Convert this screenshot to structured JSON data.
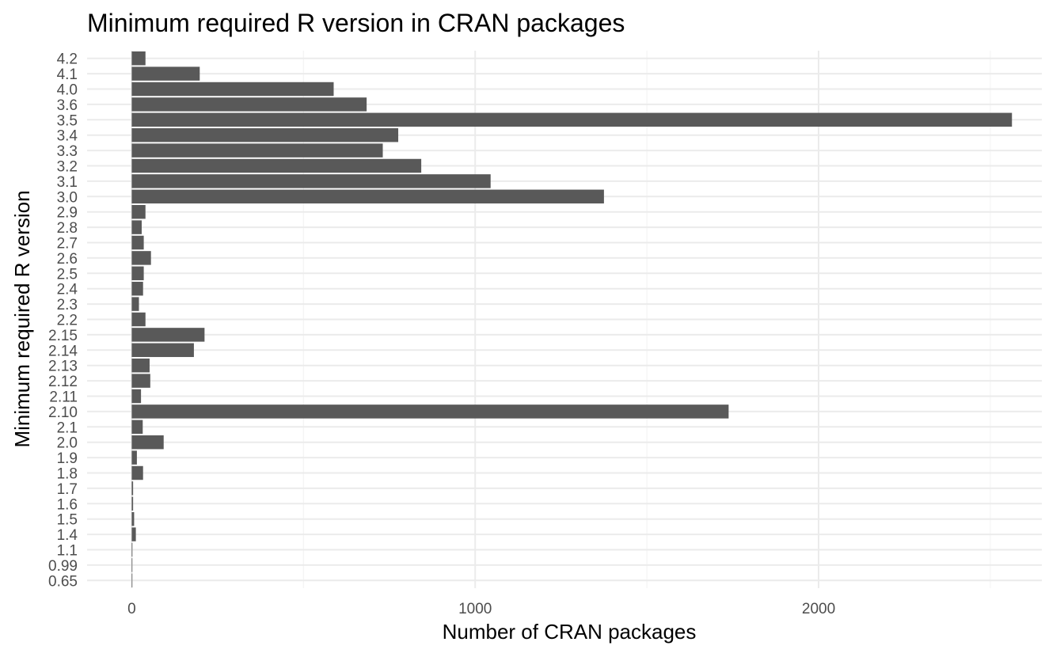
{
  "chart_data": {
    "type": "bar",
    "orientation": "horizontal",
    "title": "Minimum required R version in CRAN packages",
    "xlabel": "Number of CRAN packages",
    "ylabel": "Minimum required R version",
    "categories": [
      "0.65",
      "0.99",
      "1.1",
      "1.4",
      "1.5",
      "1.6",
      "1.7",
      "1.8",
      "1.9",
      "2.0",
      "2.1",
      "2.10",
      "2.11",
      "2.12",
      "2.13",
      "2.14",
      "2.15",
      "2.2",
      "2.3",
      "2.4",
      "2.5",
      "2.6",
      "2.7",
      "2.8",
      "2.9",
      "3.0",
      "3.1",
      "3.2",
      "3.3",
      "3.4",
      "3.5",
      "3.6",
      "4.0",
      "4.1",
      "4.2"
    ],
    "values": [
      1,
      1,
      2,
      12,
      7,
      4,
      4,
      33,
      15,
      93,
      32,
      1738,
      27,
      54,
      52,
      181,
      212,
      40,
      21,
      33,
      35,
      56,
      35,
      29,
      40,
      1375,
      1045,
      843,
      731,
      776,
      2563,
      684,
      588,
      198,
      40
    ],
    "xlim": [
      -130,
      2650
    ],
    "xticks": [
      0,
      1000,
      2000
    ],
    "xtick_labels": [
      "0",
      "1000",
      "2000"
    ],
    "grid": true,
    "bar_color": "#595959",
    "theme": "minimal"
  }
}
